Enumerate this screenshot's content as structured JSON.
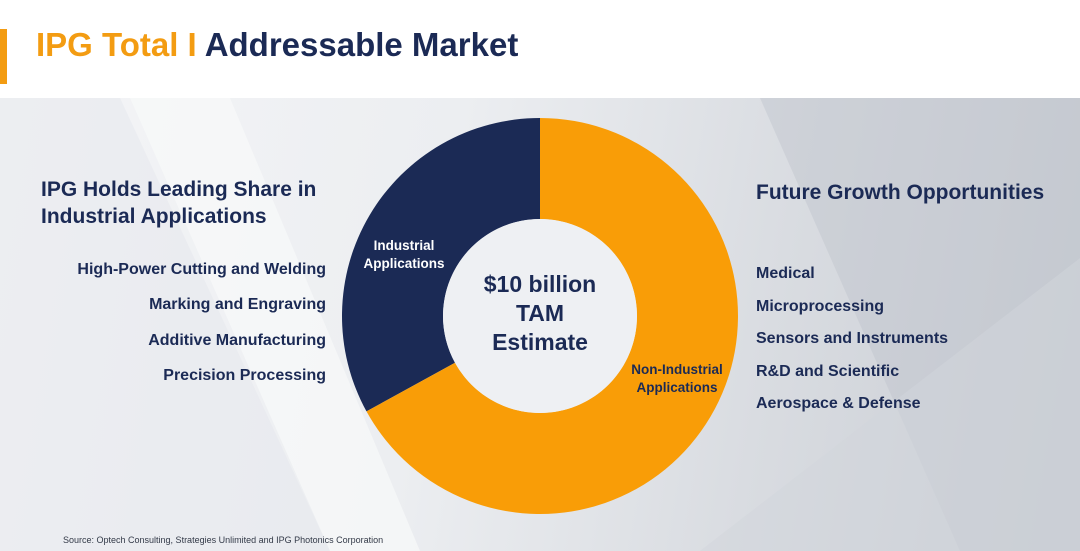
{
  "title": {
    "prefix": "IPG Total I",
    "main": "Addressable Market"
  },
  "left_panel": {
    "heading": "IPG Holds Leading Share in Industrial Applications",
    "items": [
      "High-Power Cutting and Welding",
      "Marking and Engraving",
      "Additive Manufacturing",
      "Precision Processing"
    ]
  },
  "right_panel": {
    "heading": "Future Growth Opportunities",
    "items": [
      "Medical",
      "Microprocessing",
      "Sensors and Instruments",
      "R&D and Scientific",
      "Aerospace & Defense"
    ]
  },
  "chart_data": {
    "type": "pie",
    "center_label": [
      "$10 billion",
      "TAM",
      "Estimate"
    ],
    "slices": [
      {
        "label": [
          "Industrial",
          "Applications"
        ],
        "share": 0.33,
        "color": "#1b2a55"
      },
      {
        "label": [
          "Non-Industrial",
          "Applications"
        ],
        "share": 0.67,
        "color": "#f99d07"
      }
    ]
  },
  "colors": {
    "accent": "#f39c12",
    "navy": "#1b2a55",
    "orange": "#f99d07"
  },
  "source": "Source: Optech Consulting, Strategies Unlimited and IPG Photonics Corporation"
}
